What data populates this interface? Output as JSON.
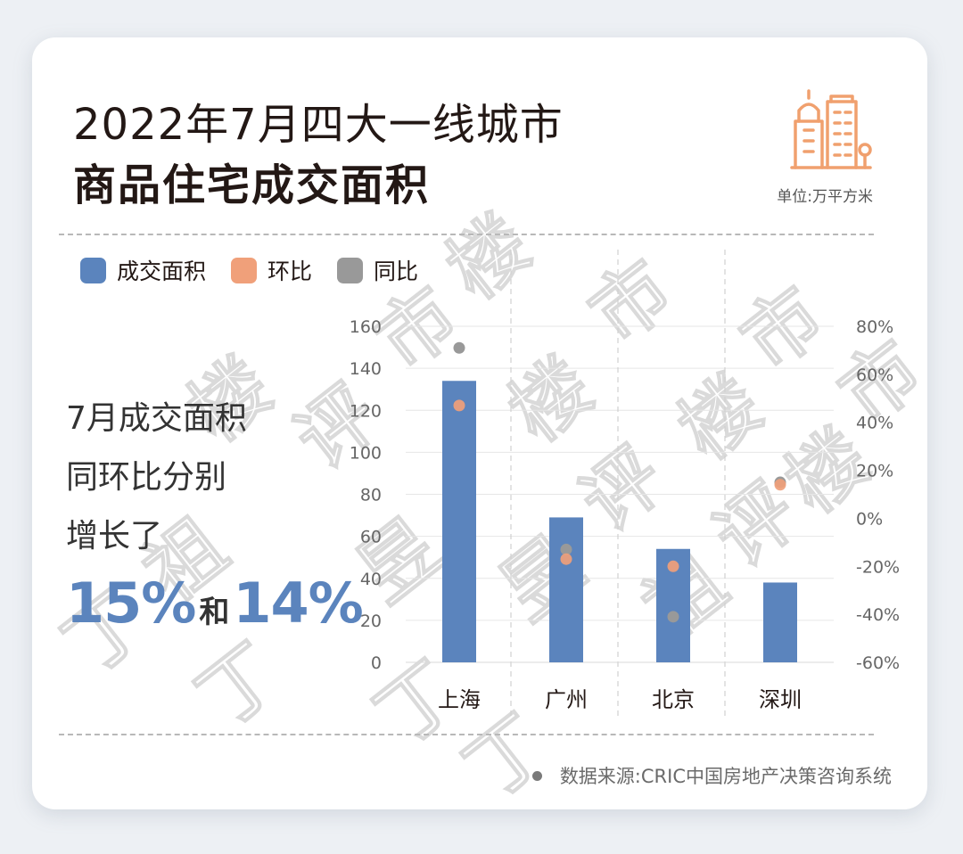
{
  "header": {
    "title_line1": "2022年7月四大一线城市",
    "title_line2": "商品住宅成交面积",
    "unit_label": "单位:万平方米"
  },
  "summary": {
    "line1": "7月成交面积",
    "line2": "同环比分别",
    "line3": "增长了",
    "value1": "15%",
    "connector": "和",
    "value2": "14%"
  },
  "source": {
    "text": "数据来源:CRIC中国房地产决策咨询系统"
  },
  "watermark_text": "丁祖昱评楼市",
  "colors": {
    "bar": "#5b84bd",
    "mom": "#f0a07a",
    "yoy": "#999999",
    "accent": "#5b84bd",
    "icon": "#f0a06e"
  },
  "chart_data": {
    "type": "bar",
    "categories": [
      "上海",
      "广州",
      "北京",
      "深圳"
    ],
    "series": [
      {
        "name": "成交面积",
        "type": "bar",
        "axis": "left",
        "values": [
          134,
          69,
          54,
          38
        ]
      },
      {
        "name": "环比",
        "type": "scatter",
        "axis": "right",
        "values": [
          47,
          -17,
          -20,
          14
        ]
      },
      {
        "name": "同比",
        "type": "scatter",
        "axis": "right",
        "values": [
          71,
          -13,
          -41,
          15
        ]
      }
    ],
    "left_axis": {
      "ylim": [
        0,
        160
      ],
      "ticks": [
        "0",
        "20",
        "40",
        "60",
        "80",
        "100",
        "120",
        "140",
        "160"
      ]
    },
    "right_axis": {
      "ylim": [
        -60,
        80
      ],
      "ticks": [
        "-60%",
        "-40%",
        "-20%",
        "0%",
        "20%",
        "40%",
        "60%",
        "80%"
      ]
    },
    "legend": [
      "成交面积",
      "环比",
      "同比"
    ],
    "legend_position": "top-left",
    "grid": true
  }
}
